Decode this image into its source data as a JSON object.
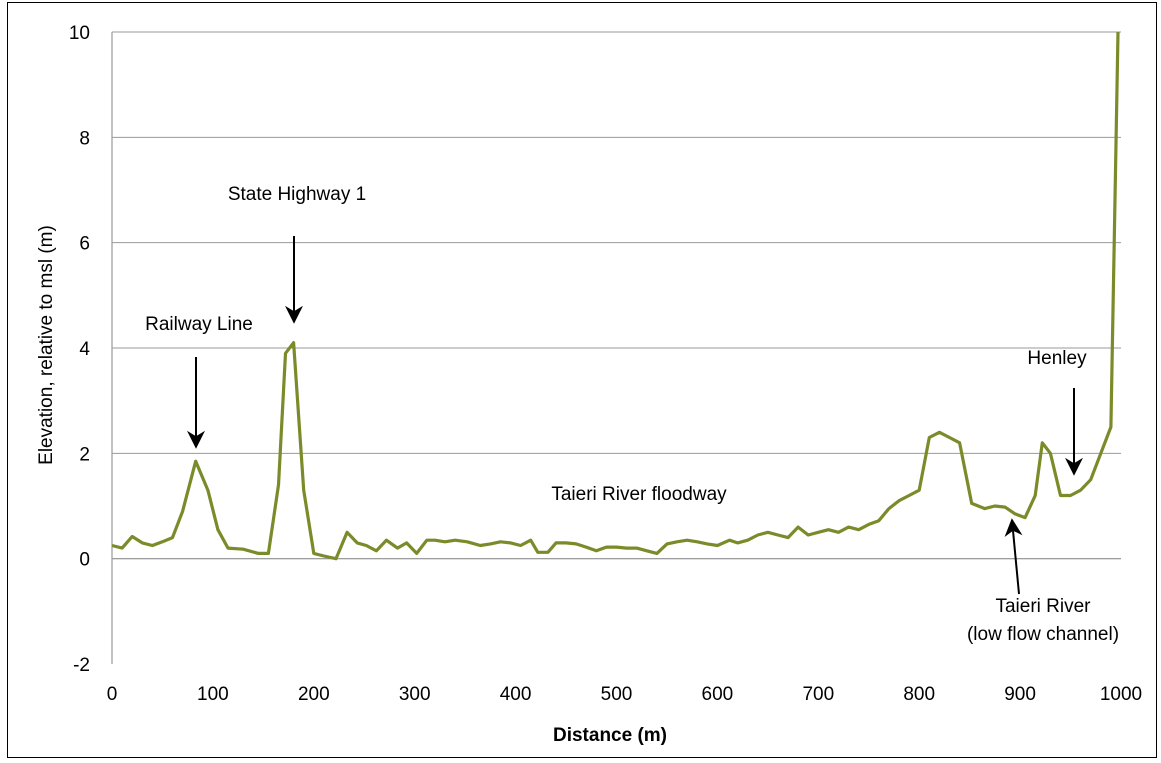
{
  "chart_data": {
    "type": "line",
    "title": "",
    "xlabel": "Distance (m)",
    "ylabel": "Elevation, relative to msl (m)",
    "xlim": [
      0,
      1000
    ],
    "ylim": [
      -2,
      10
    ],
    "x_ticks": [
      "0",
      "100",
      "200",
      "300",
      "400",
      "500",
      "600",
      "700",
      "800",
      "900",
      "1000"
    ],
    "y_ticks": [
      "10",
      "8",
      "6",
      "4",
      "2",
      "0",
      "-2"
    ],
    "grid": "horizontal",
    "line_color": "#7a8b2a",
    "series": [
      {
        "x": [
          0,
          10,
          20,
          30,
          40,
          50,
          60,
          70,
          83,
          95,
          105,
          115,
          130,
          145,
          155,
          165,
          172,
          180,
          190,
          200,
          210,
          222,
          233,
          243,
          252,
          262,
          272,
          283,
          292,
          302,
          312,
          320,
          330,
          340,
          352,
          365,
          375,
          385,
          395,
          405,
          415,
          422,
          432,
          440,
          450,
          460,
          470,
          480,
          490,
          500,
          510,
          520,
          530,
          540,
          550,
          560,
          570,
          580,
          590,
          600,
          612,
          620,
          630,
          640,
          650,
          660,
          670,
          680,
          690,
          700,
          710,
          720,
          730,
          740,
          750,
          760,
          770,
          780,
          790,
          800,
          810,
          820,
          830,
          840,
          852,
          865,
          875,
          885,
          895,
          905,
          915,
          922,
          930,
          940,
          950,
          960,
          970,
          980,
          990,
          997
        ],
        "y": [
          0.25,
          0.2,
          0.42,
          0.3,
          0.25,
          0.32,
          0.4,
          0.9,
          1.85,
          1.3,
          0.55,
          0.2,
          0.18,
          0.1,
          0.1,
          1.4,
          3.9,
          4.1,
          1.3,
          0.1,
          0.05,
          0.0,
          0.5,
          0.3,
          0.25,
          0.15,
          0.35,
          0.2,
          0.3,
          0.1,
          0.35,
          0.35,
          0.32,
          0.35,
          0.32,
          0.25,
          0.28,
          0.32,
          0.3,
          0.25,
          0.35,
          0.12,
          0.12,
          0.3,
          0.3,
          0.28,
          0.22,
          0.15,
          0.22,
          0.22,
          0.2,
          0.2,
          0.15,
          0.1,
          0.28,
          0.32,
          0.35,
          0.32,
          0.28,
          0.25,
          0.35,
          0.3,
          0.35,
          0.45,
          0.5,
          0.45,
          0.4,
          0.6,
          0.45,
          0.5,
          0.55,
          0.5,
          0.6,
          0.55,
          0.65,
          0.72,
          0.95,
          1.1,
          1.2,
          1.3,
          2.3,
          2.4,
          2.3,
          2.2,
          1.05,
          0.95,
          1.0,
          0.98,
          0.85,
          0.78,
          1.2,
          2.2,
          2.0,
          1.2,
          1.2,
          1.3,
          1.5,
          2.0,
          2.5,
          10.0
        ]
      }
    ],
    "annotations": [
      {
        "text": "State Highway 1",
        "x": 182,
        "y": 4.1
      },
      {
        "text": "Railway Line",
        "x": 85,
        "y": 1.95
      },
      {
        "text": "Taieri River floodway",
        "x": 530,
        "y": 1.1
      },
      {
        "text": "Henley",
        "x": 952,
        "y": 1.5
      },
      {
        "text": "Taieri River",
        "x": 890,
        "y": 0.7
      },
      {
        "text": "(low flow channel)",
        "x": 890,
        "y": 0.7
      }
    ]
  }
}
